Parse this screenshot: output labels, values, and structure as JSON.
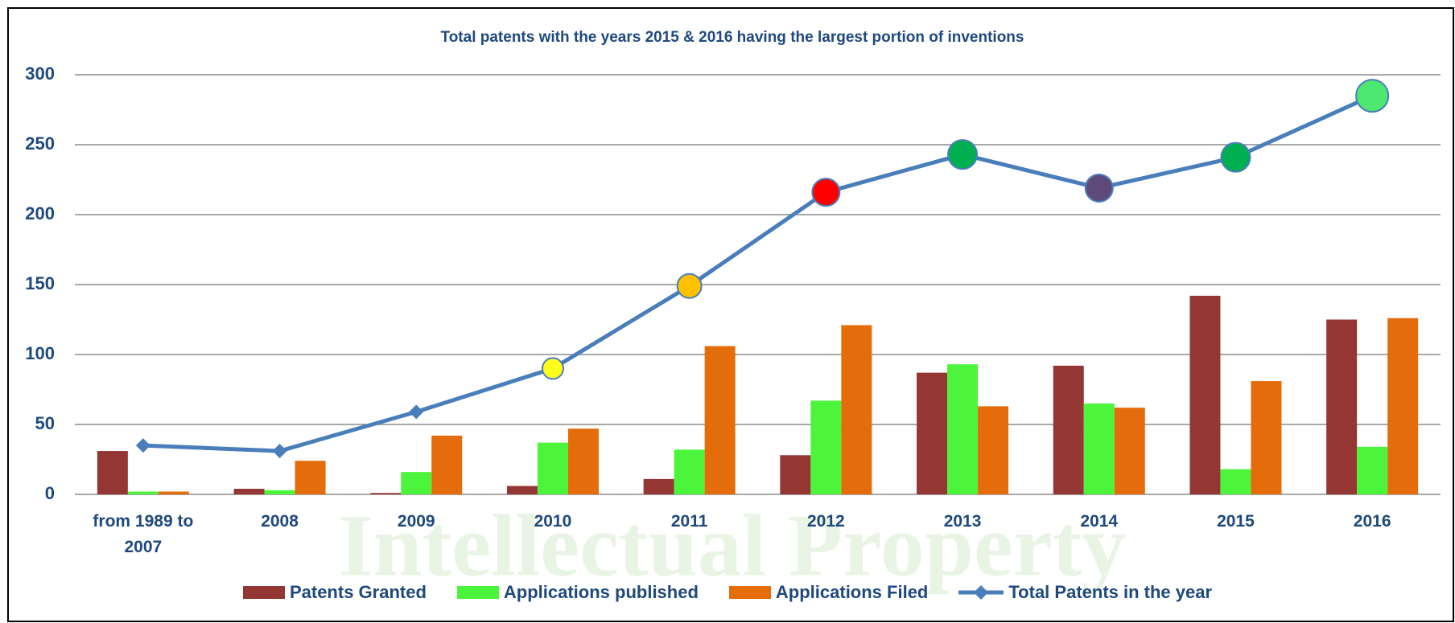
{
  "chart_data": {
    "type": "bar-line",
    "title": "Total patents with the years 2015 & 2016 having the largest portion of inventions",
    "watermark": "Intellectual Property",
    "categories": [
      "from 1989 to 2007",
      "2008",
      "2009",
      "2010",
      "2011",
      "2012",
      "2013",
      "2014",
      "2015",
      "2016"
    ],
    "series": [
      {
        "name": "Patents Granted",
        "type": "bar",
        "color": "#943634",
        "values": [
          31,
          4,
          1,
          6,
          11,
          28,
          87,
          92,
          142,
          125
        ]
      },
      {
        "name": "Applications published",
        "type": "bar",
        "color": "#4cf53c",
        "values": [
          2,
          3,
          16,
          37,
          32,
          67,
          93,
          65,
          18,
          34
        ]
      },
      {
        "name": "Applications Filed",
        "type": "bar",
        "color": "#e46c0a",
        "values": [
          2,
          24,
          42,
          47,
          106,
          121,
          63,
          62,
          81,
          126
        ]
      },
      {
        "name": "Total Patents in the year",
        "type": "line",
        "color": "#4a7ebb",
        "values": [
          35,
          31,
          59,
          90,
          149,
          216,
          243,
          219,
          241,
          285
        ],
        "marker_shapes": [
          "diamond",
          "diamond",
          "diamond",
          "circle",
          "circle",
          "circle",
          "circle",
          "circle",
          "circle",
          "circle"
        ],
        "marker_colors": [
          "#4a7ebb",
          "#4a7ebb",
          "#4a7ebb",
          "#ffff1a",
          "#ffc000",
          "#ff0000",
          "#00b050",
          "#5f497a",
          "#00b050",
          "#4de86f"
        ]
      }
    ],
    "ylim": [
      0,
      300
    ],
    "yticks": [
      0,
      50,
      100,
      150,
      200,
      250,
      300
    ],
    "grid": true,
    "legend": "bottom"
  }
}
